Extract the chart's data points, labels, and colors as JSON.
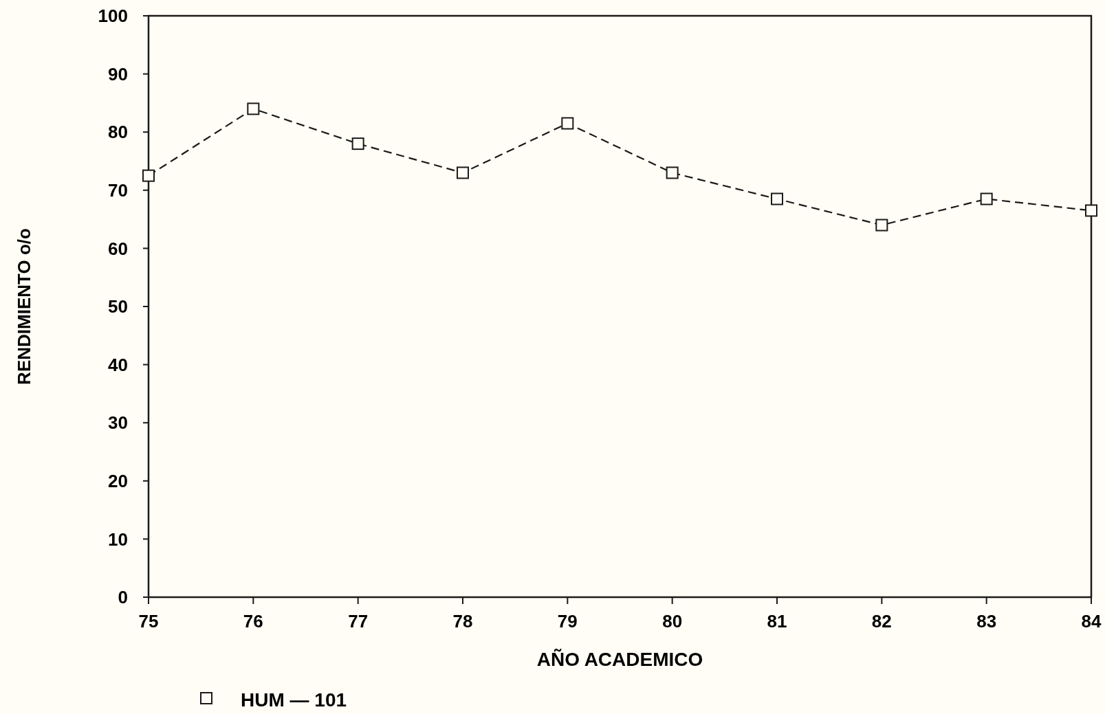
{
  "chart_data": {
    "type": "line",
    "xlabel": "AÑO ACADEMICO",
    "ylabel": "RENDIMIENTO o/o",
    "x": [
      75,
      76,
      77,
      78,
      79,
      80,
      81,
      82,
      83,
      84
    ],
    "series": [
      {
        "name": "HUM — 101",
        "color": "#1a1a1a",
        "values": [
          72.5,
          84,
          78,
          73,
          81.5,
          73,
          68.5,
          64,
          68.5,
          66.5
        ]
      }
    ],
    "xlim": [
      75,
      84
    ],
    "xticks": [
      75,
      76,
      77,
      78,
      79,
      80,
      81,
      82,
      83,
      84
    ],
    "ylim": [
      0,
      100
    ],
    "yticks": [
      0,
      10,
      20,
      30,
      40,
      50,
      60,
      70,
      80,
      90,
      100
    ],
    "marker": "square",
    "line_style": "dashed",
    "legend": "bottom left",
    "grid": false
  }
}
